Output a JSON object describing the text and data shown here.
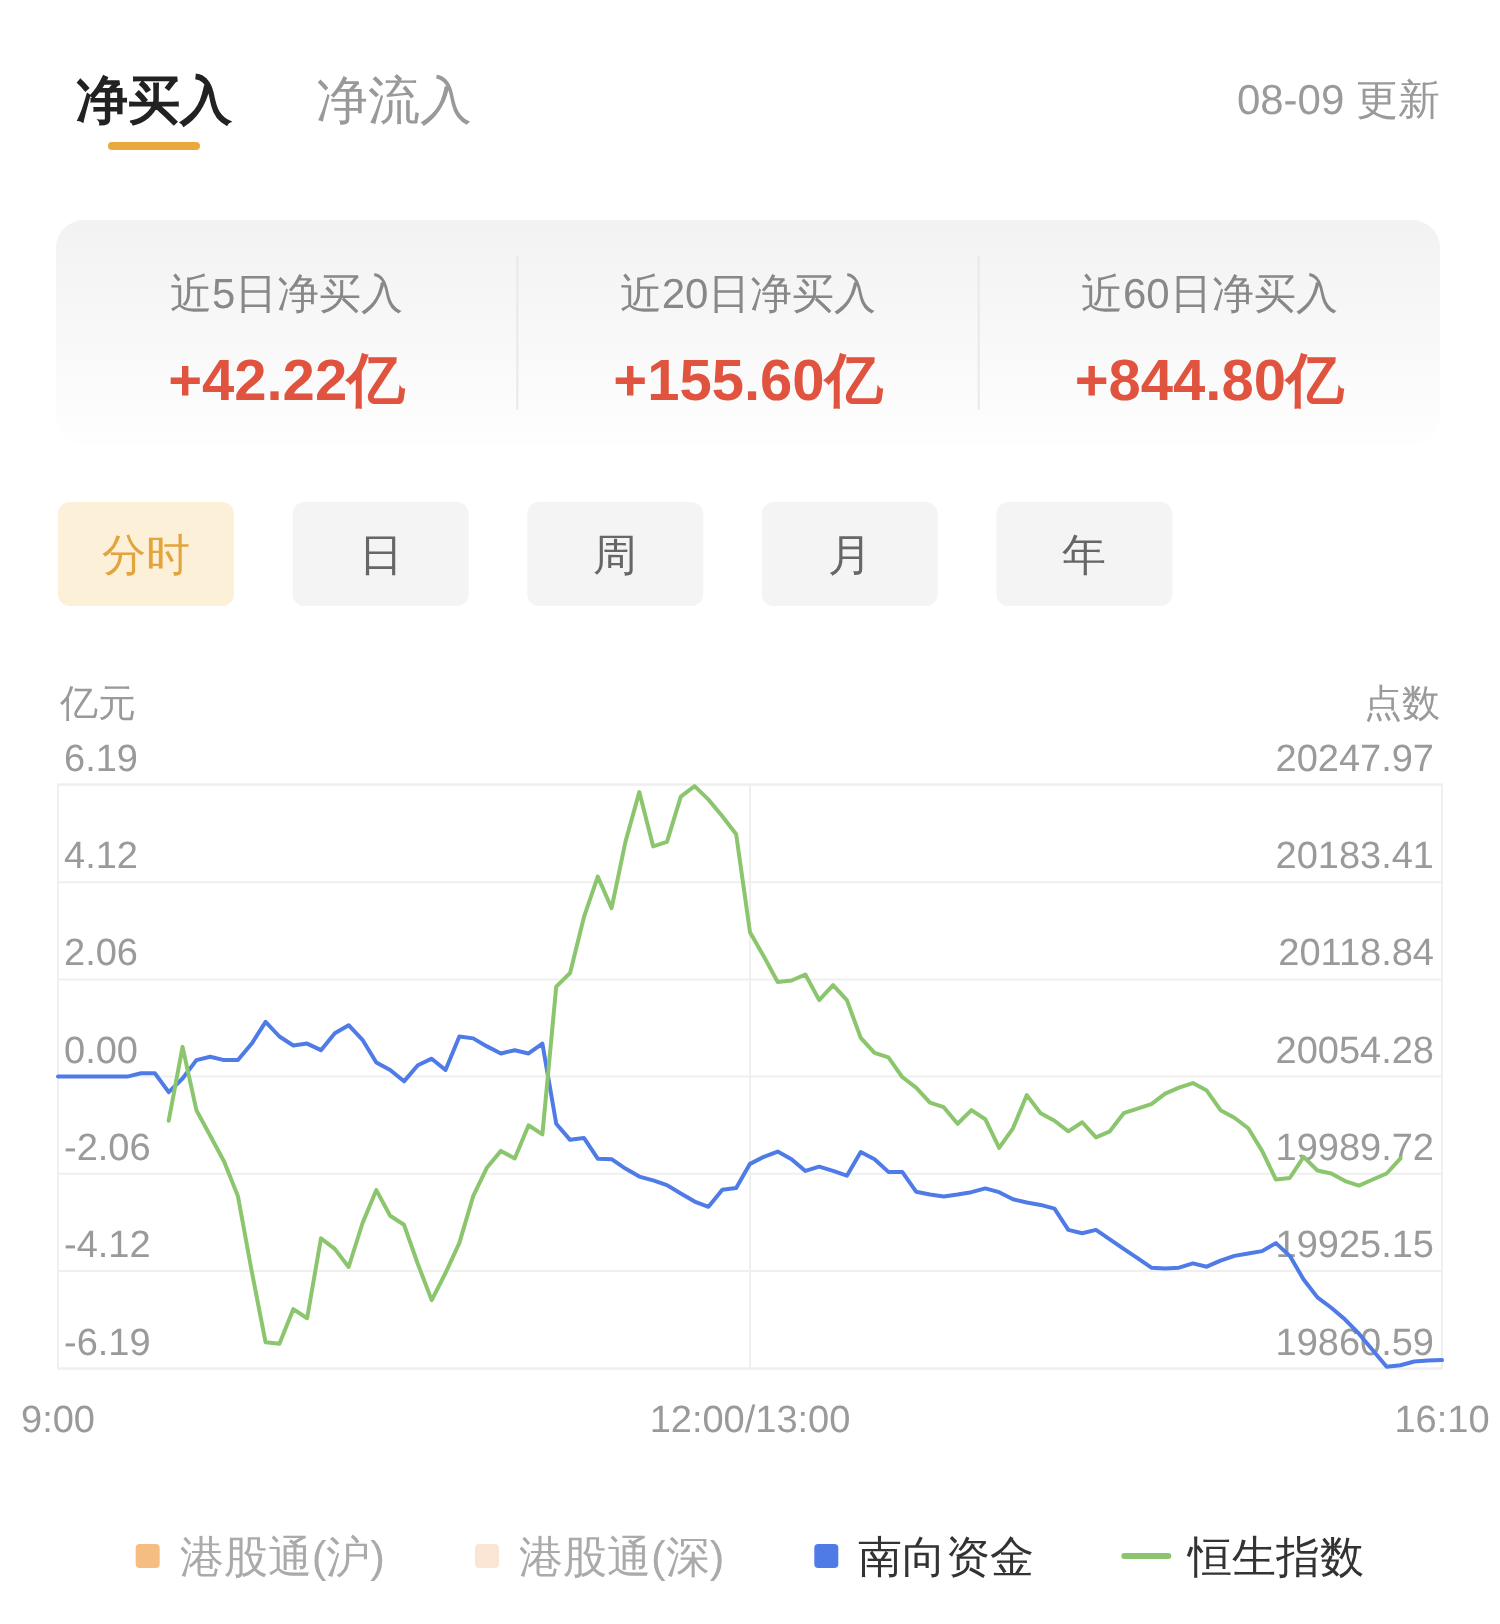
{
  "chart_data": [
    {
      "type": "other",
      "annotations": [
        "净买入",
        "净流入",
        "08-09 更新",
        "近5日净买入",
        "+42.22亿",
        "近20日净买入",
        "+155.60亿",
        "近60日净买入",
        "+844.80亿",
        "分时",
        "日",
        "周",
        "月",
        "年"
      ]
    },
    {
      "type": "line",
      "ylabel": "亿元",
      "y2label": "点数",
      "categories": [
        "9:00",
        null,
        null,
        null,
        null,
        null,
        null,
        null,
        null,
        null,
        null,
        null,
        null,
        null,
        null,
        null,
        null,
        null,
        null,
        null,
        null,
        null,
        null,
        null,
        null,
        null,
        null,
        null,
        null,
        null,
        null,
        null,
        null,
        null,
        null,
        null,
        null,
        null,
        null,
        null,
        null,
        null,
        null,
        null,
        null,
        null,
        null,
        null,
        null,
        null,
        "12:00/13:00",
        null,
        null,
        null,
        null,
        null,
        null,
        null,
        null,
        null,
        null,
        null,
        null,
        null,
        null,
        null,
        null,
        null,
        null,
        null,
        null,
        null,
        null,
        null,
        null,
        null,
        null,
        null,
        null,
        null,
        null,
        null,
        null,
        null,
        null,
        null,
        null,
        null,
        null,
        null,
        null,
        null,
        null,
        null,
        null,
        null,
        null,
        null,
        null,
        null,
        "16:10"
      ],
      "ylim": [
        -6.19,
        6.19
      ],
      "yticks": [
        6.19,
        4.12,
        2.06,
        {
          "value": 0,
          "label": "0.00"
        },
        -2.06,
        -4.12,
        -6.19
      ],
      "y2lim": [
        19860.59,
        20247.97
      ],
      "y2ticks": [
        20247.97,
        20183.41,
        20118.84,
        20054.28,
        19989.72,
        19925.15,
        19860.59
      ],
      "grid": true,
      "legend": "bottom",
      "series": [
        {
          "name": "港股通(沪)",
          "color": "#f5bd82",
          "values": [
            null,
            null,
            null,
            null,
            null,
            null,
            null,
            null,
            null,
            null,
            null,
            null,
            null,
            null,
            null,
            null,
            null,
            null,
            null,
            null,
            null,
            null,
            null,
            null,
            null,
            null,
            null,
            null,
            null,
            null,
            null,
            null,
            null,
            null,
            null,
            null,
            null,
            null,
            null,
            null,
            null,
            null,
            null,
            null,
            null,
            null,
            null,
            null,
            null,
            null,
            null,
            null,
            null,
            null,
            null,
            null,
            null,
            null,
            null,
            null,
            null,
            null,
            null,
            null,
            null,
            null,
            null,
            null,
            null,
            null,
            null,
            null,
            null,
            null,
            null,
            null,
            null,
            null,
            null,
            null,
            null,
            null,
            null,
            null,
            null,
            null,
            null,
            null,
            null,
            null,
            null,
            null,
            null,
            null,
            null,
            null,
            null,
            null,
            null,
            null,
            null
          ]
        },
        {
          "name": "港股通(深)",
          "color": "#fbe6d6",
          "values": [
            null,
            null,
            null,
            null,
            null,
            null,
            null,
            null,
            null,
            null,
            null,
            null,
            null,
            null,
            null,
            null,
            null,
            null,
            null,
            null,
            null,
            null,
            null,
            null,
            null,
            null,
            null,
            null,
            null,
            null,
            null,
            null,
            null,
            null,
            null,
            null,
            null,
            null,
            null,
            null,
            null,
            null,
            null,
            null,
            null,
            null,
            null,
            null,
            null,
            null,
            null,
            null,
            null,
            null,
            null,
            null,
            null,
            null,
            null,
            null,
            null,
            null,
            null,
            null,
            null,
            null,
            null,
            null,
            null,
            null,
            null,
            null,
            null,
            null,
            null,
            null,
            null,
            null,
            null,
            null,
            null,
            null,
            null,
            null,
            null,
            null,
            null,
            null,
            null,
            null,
            null,
            null,
            null,
            null,
            null,
            null,
            null,
            null,
            null,
            null,
            null
          ]
        },
        {
          "name": "南向资金",
          "color": "#4f7be6",
          "values": [
            0,
            0,
            0,
            0,
            0,
            0,
            0.07,
            0.07,
            -0.33,
            -0.04,
            0.35,
            0.42,
            0.35,
            0.35,
            0.7,
            1.16,
            0.85,
            0.66,
            0.7,
            0.56,
            0.92,
            1.09,
            0.78,
            0.3,
            0.14,
            -0.1,
            0.24,
            0.38,
            0.14,
            0.85,
            0.81,
            0.64,
            0.49,
            0.56,
            0.49,
            0.7,
            -1.0,
            -1.34,
            -1.3,
            -1.74,
            -1.75,
            -1.95,
            -2.12,
            -2.2,
            -2.3,
            -2.48,
            -2.65,
            -2.76,
            -2.4,
            -2.36,
            -1.85,
            -1.7,
            -1.59,
            -1.75,
            -2.0,
            -1.91,
            -2.0,
            -2.1,
            -1.6,
            -1.75,
            -2.02,
            -2.02,
            -2.44,
            -2.5,
            -2.54,
            -2.5,
            -2.45,
            -2.37,
            -2.45,
            -2.6,
            -2.67,
            -2.72,
            -2.8,
            -3.25,
            -3.32,
            -3.25,
            -3.45,
            -3.65,
            -3.85,
            -4.05,
            -4.07,
            -4.05,
            -3.96,
            -4.03,
            -3.9,
            -3.8,
            -3.75,
            -3.7,
            -3.53,
            -3.8,
            -4.3,
            -4.68,
            -4.9,
            -5.15,
            -5.45,
            -5.8,
            -6.15,
            -6.12,
            -6.04,
            -6.02,
            -6.01
          ]
        },
        {
          "name": "恒生指数",
          "color": "#8bc56d",
          "axis": "y2",
          "values": [
            null,
            null,
            null,
            null,
            null,
            null,
            null,
            null,
            20025,
            20074,
            20032,
            20015,
            19998,
            19975,
            19925,
            19878,
            19877,
            19900,
            19894,
            19947,
            19940,
            19928,
            19957,
            19979,
            19962,
            19956,
            19930,
            19906,
            19924,
            19944,
            19975,
            19994,
            20005,
            20000,
            20022,
            20016,
            20114,
            20123,
            20160,
            20187,
            20166,
            20210,
            20243,
            20207,
            20210,
            20240,
            20247,
            20238,
            20227,
            20215,
            20150,
            20134,
            20117,
            20118,
            20122,
            20105,
            20115,
            20105,
            20080,
            20070,
            20067,
            20054,
            20047,
            20037,
            20034,
            20023,
            20032,
            20026,
            20007,
            20020,
            20042,
            20030,
            20025,
            20018,
            20024,
            20014,
            20018,
            20030,
            20033,
            20036,
            20043,
            20047,
            20050,
            20045,
            20032,
            20027,
            20020,
            20005,
            19986,
            19987,
            20001,
            19992,
            19990,
            19985,
            19982,
            19986,
            19990,
            20000,
            null,
            null,
            null
          ]
        }
      ]
    }
  ]
}
